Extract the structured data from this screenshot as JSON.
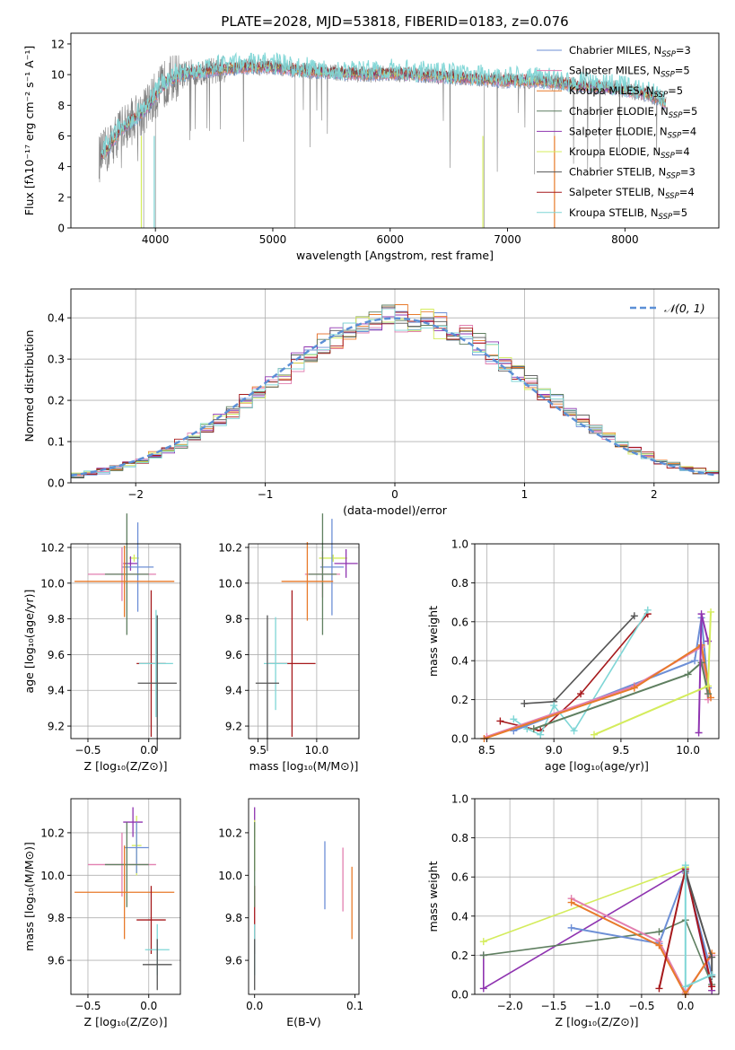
{
  "figure": {
    "title": "PLATE=2028, MJD=53818, FIBERID=0183, z=0.076"
  },
  "chart_data": [
    {
      "id": "spectrum",
      "type": "line",
      "title": "PLATE=2028, MJD=53818, FIBERID=0183, z=0.076",
      "xlabel": "wavelength [Angstrom, rest frame]",
      "ylabel": "Flux [fλ10⁻¹⁷ erg cm⁻² s⁻¹ A⁻¹]",
      "xlim": [
        3280,
        8800
      ],
      "ylim": [
        0,
        12.7
      ],
      "xticks": [
        4000,
        5000,
        6000,
        7000,
        8000
      ],
      "yticks": [
        0,
        2,
        4,
        6,
        8,
        10,
        12
      ],
      "grid": false,
      "legend_position": "top-right",
      "series": [
        {
          "name": "Chabrier MILES, N_SSP=3",
          "color": "#6d8fd6"
        },
        {
          "name": "Salpeter MILES, N_SSP=5",
          "color": "#e27fb0"
        },
        {
          "name": "Kroupa MILES, N_SSP=5",
          "color": "#e87a2a"
        },
        {
          "name": "Chabrier ELODIE, N_SSP=5",
          "color": "#5f7f60"
        },
        {
          "name": "Salpeter ELODIE, N_SSP=4",
          "color": "#8f34b0"
        },
        {
          "name": "Kroupa ELODIE, N_SSP=4",
          "color": "#d4ec5c"
        },
        {
          "name": "Chabrier STELIB, N_SSP=3",
          "color": "#555555"
        },
        {
          "name": "Salpeter STELIB, N_SSP=4",
          "color": "#a6191c"
        },
        {
          "name": "Kroupa STELIB, N_SSP=5",
          "color": "#7fd6d6"
        }
      ],
      "continuum": {
        "x": [
          3520,
          3600,
          3700,
          3800,
          3900,
          4000,
          4100,
          4200,
          4300,
          4400,
          4500,
          4600,
          4800,
          5000,
          5200,
          5400,
          5600,
          5800,
          6000,
          6200,
          6400,
          6600,
          6800,
          7000,
          7200,
          7400,
          7600,
          7800,
          8000,
          8200,
          8300,
          8350
        ],
        "y": [
          4.5,
          5.2,
          6.4,
          7.0,
          7.6,
          8.6,
          9.6,
          9.9,
          10.1,
          10.2,
          10.3,
          10.4,
          10.5,
          10.5,
          10.3,
          10.2,
          10.1,
          10.0,
          10.1,
          10.0,
          9.9,
          9.8,
          9.7,
          9.6,
          9.6,
          9.5,
          9.3,
          9.2,
          9.0,
          8.7,
          8.4,
          8.0
        ]
      }
    },
    {
      "id": "residuals",
      "type": "histogram",
      "xlabel": "(data-model)/error",
      "ylabel": "Normed distribution",
      "xlim": [
        -2.5,
        2.5
      ],
      "ylim": [
        0,
        0.47
      ],
      "xticks": [
        -2,
        -1,
        0,
        1,
        2
      ],
      "yticks": [
        0.0,
        0.1,
        0.2,
        0.3,
        0.4
      ],
      "grid": true,
      "legend_position": "top-right",
      "legend": "𝒩(0, 1)",
      "bin_width": 0.1,
      "gaussian": {
        "mean": 0,
        "sigma": 1,
        "color": "#5b8fd6"
      }
    },
    {
      "id": "age-vs-Z",
      "type": "scatter",
      "xlabel": "Z [log₁₀(Z/Z⊙)]",
      "ylabel": "age  [log₁₀(age/yr)]",
      "xlim": [
        -0.64,
        0.26
      ],
      "ylim": [
        9.13,
        10.22
      ],
      "xticks": [
        -0.5,
        0.0
      ],
      "yticks": [
        9.2,
        9.4,
        9.6,
        9.8,
        10.0,
        10.2
      ],
      "grid": true,
      "points": [
        {
          "x": -0.12,
          "y": 10.14,
          "xerr": 0.04,
          "yerr": 0.02,
          "color": "#d4ec5c"
        },
        {
          "x": -0.15,
          "y": 10.11,
          "xerr": 0.06,
          "yerr": 0.04,
          "color": "#8f34b0"
        },
        {
          "x": -0.09,
          "y": 10.09,
          "xerr": 0.13,
          "yerr": 0.25,
          "color": "#6d8fd6"
        },
        {
          "x": -0.22,
          "y": 10.05,
          "xerr": 0.28,
          "yerr": 0.15,
          "color": "#e27fb0"
        },
        {
          "x": -0.18,
          "y": 10.05,
          "xerr": 0.18,
          "yerr": 0.34,
          "color": "#5f7f60"
        },
        {
          "x": -0.2,
          "y": 10.01,
          "xerr": 0.41,
          "yerr": 0.2,
          "color": "#e87a2a"
        },
        {
          "x": 0.02,
          "y": 9.55,
          "xerr": 0.12,
          "yerr": 0.41,
          "color": "#a6191c"
        },
        {
          "x": 0.06,
          "y": 9.55,
          "xerr": 0.14,
          "yerr": 0.3,
          "color": "#7fd6d6"
        },
        {
          "x": 0.07,
          "y": 9.44,
          "xerr": 0.16,
          "yerr": 0.38,
          "color": "#555555"
        }
      ]
    },
    {
      "id": "age-vs-mass",
      "type": "scatter",
      "xlabel": "mass [log₁₀(M/M⊙)]",
      "ylabel": "",
      "xlim": [
        9.42,
        10.36
      ],
      "ylim": [
        9.13,
        10.22
      ],
      "xticks": [
        9.5,
        10.0
      ],
      "yticks": [
        9.2,
        9.4,
        9.6,
        9.8,
        10.0,
        10.2
      ],
      "grid": true,
      "points": [
        {
          "x": 10.14,
          "y": 10.14,
          "xerr": 0.12,
          "yerr": 0.02,
          "color": "#d4ec5c"
        },
        {
          "x": 10.25,
          "y": 10.11,
          "xerr": 0.1,
          "yerr": 0.08,
          "color": "#8f34b0"
        },
        {
          "x": 10.13,
          "y": 10.09,
          "xerr": 0.1,
          "yerr": 0.27,
          "color": "#6d8fd6"
        },
        {
          "x": 10.05,
          "y": 10.05,
          "xerr": 0.15,
          "yerr": 0.13,
          "color": "#e27fb0"
        },
        {
          "x": 10.05,
          "y": 10.05,
          "xerr": 0.12,
          "yerr": 0.34,
          "color": "#5f7f60"
        },
        {
          "x": 9.92,
          "y": 10.01,
          "xerr": 0.22,
          "yerr": 0.22,
          "color": "#e87a2a"
        },
        {
          "x": 9.79,
          "y": 9.55,
          "xerr": 0.2,
          "yerr": 0.41,
          "color": "#a6191c"
        },
        {
          "x": 9.65,
          "y": 9.55,
          "xerr": 0.1,
          "yerr": 0.26,
          "color": "#7fd6d6"
        },
        {
          "x": 9.58,
          "y": 9.44,
          "xerr": 0.1,
          "yerr": 0.38,
          "color": "#555555"
        }
      ]
    },
    {
      "id": "massweight-vs-age",
      "type": "line",
      "xlabel": "age  [log₁₀(age/yr)]",
      "ylabel": "mass weight",
      "xlim": [
        8.41,
        10.23
      ],
      "ylim": [
        0,
        1
      ],
      "xticks": [
        8.5,
        9.0,
        9.5,
        10.0
      ],
      "yticks": [
        0.0,
        0.2,
        0.4,
        0.6,
        0.8,
        1.0
      ],
      "grid": true,
      "series": [
        {
          "color": "#555555",
          "x": [
            8.78,
            9.0,
            9.6
          ],
          "y": [
            0.18,
            0.19,
            0.63
          ]
        },
        {
          "color": "#a6191c",
          "x": [
            8.6,
            8.9,
            9.2,
            9.7
          ],
          "y": [
            0.09,
            0.04,
            0.23,
            0.64
          ]
        },
        {
          "color": "#7fd6d6",
          "x": [
            8.7,
            8.8,
            8.9,
            9.0,
            9.15,
            9.7
          ],
          "y": [
            0.1,
            0.05,
            0.02,
            0.17,
            0.04,
            0.66
          ]
        },
        {
          "color": "#6d8fd6",
          "x": [
            8.7,
            10.05,
            10.1,
            10.15
          ],
          "y": [
            0.04,
            0.4,
            0.62,
            0.26
          ]
        },
        {
          "color": "#e27fb0",
          "x": [
            8.5,
            9.6,
            10.1,
            10.15
          ],
          "y": [
            0.01,
            0.27,
            0.47,
            0.2
          ]
        },
        {
          "color": "#e87a2a",
          "x": [
            8.48,
            9.6,
            10.1,
            10.17
          ],
          "y": [
            0.0,
            0.26,
            0.48,
            0.21
          ]
        },
        {
          "color": "#5f7f60",
          "x": [
            8.85,
            10.0,
            10.1,
            10.15
          ],
          "y": [
            0.05,
            0.33,
            0.39,
            0.23
          ]
        },
        {
          "color": "#8f34b0",
          "x": [
            10.08,
            10.1,
            10.15
          ],
          "y": [
            0.03,
            0.64,
            0.5
          ]
        },
        {
          "color": "#d4ec5c",
          "x": [
            9.3,
            10.15,
            10.17
          ],
          "y": [
            0.02,
            0.27,
            0.65
          ]
        }
      ]
    },
    {
      "id": "mass-vs-Z",
      "type": "scatter",
      "xlabel": "Z [log₁₀(Z/Z⊙)]",
      "ylabel": "mass [log₁₀(M/M⊙)]",
      "xlim": [
        -0.64,
        0.26
      ],
      "ylim": [
        9.44,
        10.36
      ],
      "xticks": [
        -0.5,
        0.0
      ],
      "yticks": [
        9.6,
        9.8,
        10.0,
        10.2
      ],
      "grid": true,
      "points": [
        {
          "x": -0.1,
          "y": 10.14,
          "xerr": 0.04,
          "yerr": 0.14,
          "color": "#d4ec5c"
        },
        {
          "x": -0.13,
          "y": 10.25,
          "xerr": 0.08,
          "yerr": 0.07,
          "color": "#8f34b0"
        },
        {
          "x": -0.1,
          "y": 10.13,
          "xerr": 0.1,
          "yerr": 0.12,
          "color": "#6d8fd6"
        },
        {
          "x": -0.22,
          "y": 10.05,
          "xerr": 0.28,
          "yerr": 0.15,
          "color": "#e27fb0"
        },
        {
          "x": -0.18,
          "y": 10.05,
          "xerr": 0.18,
          "yerr": 0.2,
          "color": "#5f7f60"
        },
        {
          "x": -0.2,
          "y": 9.92,
          "xerr": 0.41,
          "yerr": 0.22,
          "color": "#e87a2a"
        },
        {
          "x": 0.02,
          "y": 9.79,
          "xerr": 0.12,
          "yerr": 0.16,
          "color": "#a6191c"
        },
        {
          "x": 0.07,
          "y": 9.65,
          "xerr": 0.1,
          "yerr": 0.12,
          "color": "#7fd6d6"
        },
        {
          "x": 0.07,
          "y": 9.58,
          "xerr": 0.12,
          "yerr": 0.12,
          "color": "#555555"
        }
      ]
    },
    {
      "id": "mass-vs-EBV",
      "type": "scatter",
      "xlabel": "E(B-V)",
      "ylabel": "",
      "xlim": [
        -0.006,
        0.104
      ],
      "ylim": [
        9.44,
        10.36
      ],
      "xticks": [
        0.0,
        0.1
      ],
      "yticks": [
        9.6,
        9.8,
        10.0,
        10.2
      ],
      "grid": false,
      "points": [
        {
          "x": 0.0,
          "y": 10.25,
          "yerr": 0.07,
          "color": "#8f34b0"
        },
        {
          "x": 0.0,
          "y": 10.14,
          "yerr": 0.12,
          "color": "#d4ec5c"
        },
        {
          "x": 0.0,
          "y": 9.79,
          "yerr": 0.16,
          "color": "#a6191c"
        },
        {
          "x": 0.0,
          "y": 9.65,
          "yerr": 0.12,
          "color": "#7fd6d6"
        },
        {
          "x": 0.0,
          "y": 9.58,
          "yerr": 0.12,
          "color": "#555555"
        },
        {
          "x": 0.0,
          "y": 10.05,
          "yerr": 0.2,
          "color": "#5f7f60"
        },
        {
          "x": 0.07,
          "y": 10.0,
          "yerr": 0.16,
          "color": "#6d8fd6"
        },
        {
          "x": 0.088,
          "y": 9.98,
          "yerr": 0.15,
          "color": "#e27fb0"
        },
        {
          "x": 0.097,
          "y": 9.87,
          "yerr": 0.17,
          "color": "#e87a2a"
        }
      ]
    },
    {
      "id": "massweight-vs-Z",
      "type": "line",
      "xlabel": "Z [log₁₀(Z/Z⊙)]",
      "ylabel": "mass weight",
      "xlim": [
        -2.4,
        0.38
      ],
      "ylim": [
        0,
        1
      ],
      "xticks": [
        -2.0,
        -1.5,
        -1.0,
        -0.5,
        0.0
      ],
      "yticks": [
        0.0,
        0.2,
        0.4,
        0.6,
        0.8,
        1.0
      ],
      "grid": true,
      "series": [
        {
          "color": "#d4ec5c",
          "x": [
            -2.3,
            0.0,
            0.3
          ],
          "y": [
            0.27,
            0.65,
            0.02
          ]
        },
        {
          "color": "#8f34b0",
          "x": [
            -2.3,
            -2.3,
            0.0,
            0.3
          ],
          "y": [
            0.2,
            0.03,
            0.64,
            0.02
          ]
        },
        {
          "color": "#5f7f60",
          "x": [
            -2.3,
            -0.3,
            0.0,
            0.3
          ],
          "y": [
            0.2,
            0.32,
            0.38,
            0.05
          ]
        },
        {
          "color": "#6d8fd6",
          "x": [
            -1.3,
            -0.3,
            0.0,
            0.3
          ],
          "y": [
            0.34,
            0.26,
            0.62,
            0.1
          ]
        },
        {
          "color": "#e27fb0",
          "x": [
            -1.3,
            -0.3,
            0.0,
            0.3
          ],
          "y": [
            0.49,
            0.27,
            0.01,
            0.2
          ]
        },
        {
          "color": "#e87a2a",
          "x": [
            -1.3,
            -0.3,
            0.0,
            0.3
          ],
          "y": [
            0.47,
            0.25,
            0.0,
            0.21
          ]
        },
        {
          "color": "#a6191c",
          "x": [
            -0.3,
            0.0,
            0.3
          ],
          "y": [
            0.03,
            0.64,
            0.04
          ]
        },
        {
          "color": "#555555",
          "x": [
            0.0,
            0.3,
            0.3
          ],
          "y": [
            0.63,
            0.19,
            0.09
          ]
        },
        {
          "color": "#7fd6d6",
          "x": [
            0.0,
            0.0,
            0.3
          ],
          "y": [
            0.66,
            0.04,
            0.1
          ]
        }
      ]
    }
  ]
}
